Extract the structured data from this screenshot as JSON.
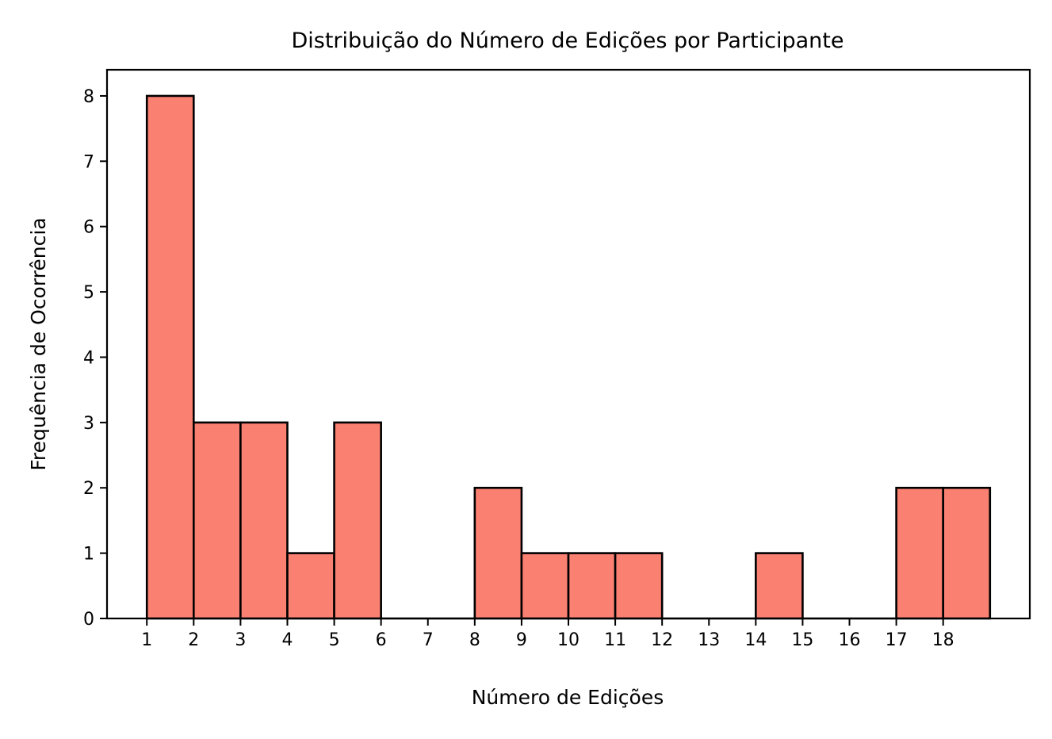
{
  "chart_data": {
    "type": "bar",
    "title": "Distribuição do Número de Edições por Participante",
    "xlabel": "Número de Edições",
    "ylabel": "Frequência de Ocorrência",
    "bin_edges": [
      1,
      2,
      3,
      4,
      5,
      6,
      7,
      8,
      9,
      10,
      11,
      12,
      13,
      14,
      15,
      16,
      17,
      18,
      19
    ],
    "values": [
      8,
      3,
      3,
      1,
      3,
      0,
      0,
      2,
      1,
      1,
      1,
      0,
      0,
      1,
      0,
      0,
      2,
      2
    ],
    "x_ticks": [
      "1",
      "2",
      "3",
      "4",
      "5",
      "6",
      "7",
      "8",
      "9",
      "10",
      "11",
      "12",
      "13",
      "14",
      "15",
      "16",
      "17",
      "18"
    ],
    "y_ticks": [
      "0",
      "1",
      "2",
      "3",
      "4",
      "5",
      "6",
      "7",
      "8"
    ],
    "xlim": [
      0.15,
      19.85
    ],
    "ylim": [
      0,
      8.4
    ],
    "grid": false,
    "colors": {
      "bar_fill": "#FA8072",
      "bar_edge": "#000000"
    }
  }
}
